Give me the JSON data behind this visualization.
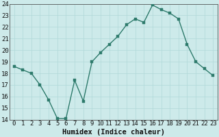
{
  "x": [
    0,
    1,
    2,
    3,
    4,
    5,
    6,
    7,
    8,
    9,
    10,
    11,
    12,
    13,
    14,
    15,
    16,
    17,
    18,
    19,
    20,
    21,
    22,
    23
  ],
  "y": [
    18.6,
    18.3,
    18.0,
    17.0,
    15.7,
    14.1,
    14.1,
    17.4,
    15.6,
    19.0,
    19.8,
    20.5,
    21.2,
    22.2,
    22.7,
    22.4,
    23.9,
    23.5,
    23.2,
    22.7,
    20.5,
    19.0,
    18.4,
    17.8
  ],
  "xlabel": "Humidex (Indice chaleur)",
  "ylim": [
    14,
    24
  ],
  "xlim": [
    -0.5,
    23.5
  ],
  "yticks": [
    14,
    15,
    16,
    17,
    18,
    19,
    20,
    21,
    22,
    23,
    24
  ],
  "xticks": [
    0,
    1,
    2,
    3,
    4,
    5,
    6,
    7,
    8,
    9,
    10,
    11,
    12,
    13,
    14,
    15,
    16,
    17,
    18,
    19,
    20,
    21,
    22,
    23
  ],
  "line_color": "#2d7a6b",
  "bg_color": "#cdeaea",
  "grid_color": "#b0d8d8",
  "xlabel_fontsize": 7.5,
  "tick_fontsize": 6.5,
  "marker_size": 2.5,
  "line_width": 1.0
}
